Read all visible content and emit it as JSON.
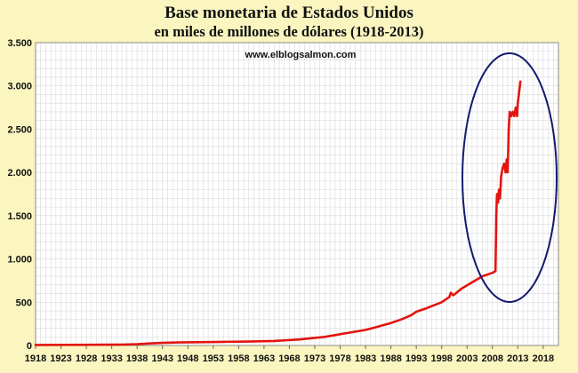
{
  "chart_data": {
    "type": "line",
    "title": "Base monetaria de Estados Unidos",
    "subtitle": "en miles de millones de dólares (1918-2013)",
    "source_text": "www.elblogsalmon.com",
    "xlabel": "",
    "ylabel": "",
    "xlim": [
      1918,
      2021
    ],
    "ylim": [
      0,
      3500
    ],
    "x_ticks": [
      1918,
      1923,
      1928,
      1933,
      1938,
      1943,
      1948,
      1953,
      1958,
      1963,
      1968,
      1973,
      1978,
      1983,
      1988,
      1993,
      1998,
      2003,
      2008,
      2013,
      2018
    ],
    "x_tick_labels": [
      "1918",
      "1923",
      "1928",
      "1933",
      "1938",
      "1943",
      "1948",
      "1953",
      "1958",
      "1963",
      "1968",
      "1973",
      "1978",
      "1983",
      "1988",
      "1993",
      "1998",
      "2003",
      "2008",
      "2013",
      "2018"
    ],
    "y_ticks": [
      0,
      500,
      1000,
      1500,
      2000,
      2500,
      3000,
      3500
    ],
    "y_tick_labels": [
      "0",
      "500",
      "1.000",
      "1.500",
      "2.000",
      "2.500",
      "3.000",
      "3.500"
    ],
    "grid": true,
    "line_color": "#e3140f",
    "highlight_color": "#141a6e",
    "series": [
      {
        "name": "",
        "x": [
          1918,
          1925,
          1930,
          1935,
          1938,
          1941,
          1943,
          1946,
          1950,
          1955,
          1960,
          1965,
          1970,
          1975,
          1980,
          1983,
          1985,
          1988,
          1990,
          1992,
          1993,
          1995,
          1998,
          1999.5,
          1999.8,
          2000.3,
          2002,
          2004,
          2006,
          2008.0,
          2008.6,
          2008.75,
          2008.9,
          2009.1,
          2009.3,
          2009.5,
          2009.7,
          2010.0,
          2010.3,
          2010.6,
          2010.8,
          2011.0,
          2011.2,
          2011.4,
          2011.7,
          2012.0,
          2012.3,
          2012.6,
          2012.85,
          2013.0,
          2013.2,
          2013.5
        ],
        "y": [
          6,
          7,
          8,
          10,
          15,
          25,
          30,
          35,
          38,
          42,
          45,
          52,
          70,
          100,
          150,
          180,
          210,
          260,
          300,
          350,
          390,
          430,
          500,
          560,
          610,
          580,
          660,
          730,
          800,
          840,
          860,
          1500,
          1750,
          1650,
          1800,
          1700,
          1950,
          2050,
          2100,
          2000,
          2150,
          2000,
          2500,
          2700,
          2650,
          2700,
          2650,
          2750,
          2650,
          2800,
          2900,
          3050
        ]
      }
    ]
  }
}
